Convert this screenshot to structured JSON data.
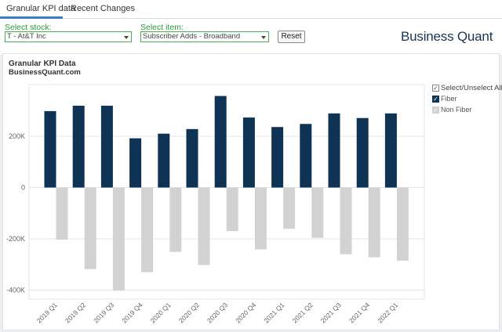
{
  "tabs": [
    "Granular KPI data",
    "Recent Changes"
  ],
  "controls": {
    "stock_label": "Select stock:",
    "stock_value": "T - At&T Inc",
    "item_label": "Select item:",
    "item_value": "Subscriber Adds - Broadband",
    "reset_label": "Reset"
  },
  "logo": "Business Quant",
  "chart_title": "Granular KPI Data",
  "chart_subtitle": "BusinessQuant.com",
  "legend": {
    "select_all": "Select/Unselect All",
    "items": [
      {
        "name": "Fiber",
        "checked": true,
        "color": "#0e3354"
      },
      {
        "name": "Non Fiber",
        "checked": true,
        "color": "#d2d2d2"
      }
    ]
  },
  "colors": {
    "accent": "#3a7ec4",
    "control_green": "#4caf50",
    "fiber": "#0e3354",
    "non_fiber": "#d2d2d2"
  },
  "chart_data": {
    "type": "bar",
    "title": "Granular KPI Data",
    "subtitle": "BusinessQuant.com",
    "categories": [
      "2019 Q1",
      "2019 Q2",
      "2019 Q3",
      "2019 Q4",
      "2020 Q1",
      "2020 Q2",
      "2020 Q3",
      "2020 Q4",
      "2021 Q1",
      "2021 Q2",
      "2021 Q3",
      "2021 Q4",
      "2022 Q1"
    ],
    "series": [
      {
        "name": "Fiber",
        "values": [
          298000,
          319000,
          319000,
          192000,
          210000,
          228000,
          357000,
          273000,
          236000,
          248000,
          289000,
          271000,
          289000
        ]
      },
      {
        "name": "Non Fiber",
        "values": [
          -203000,
          -318000,
          -402000,
          -330000,
          -251000,
          -302000,
          -170000,
          -241000,
          -161000,
          -196000,
          -260000,
          -272000,
          -285000
        ]
      }
    ],
    "yticks": [
      200000,
      0,
      -200000,
      -400000
    ],
    "ytick_labels": [
      "200K",
      "0",
      "-200K",
      "-400K"
    ],
    "ylim": [
      -410000,
      400000
    ],
    "grid": true,
    "legend_position": "right"
  }
}
